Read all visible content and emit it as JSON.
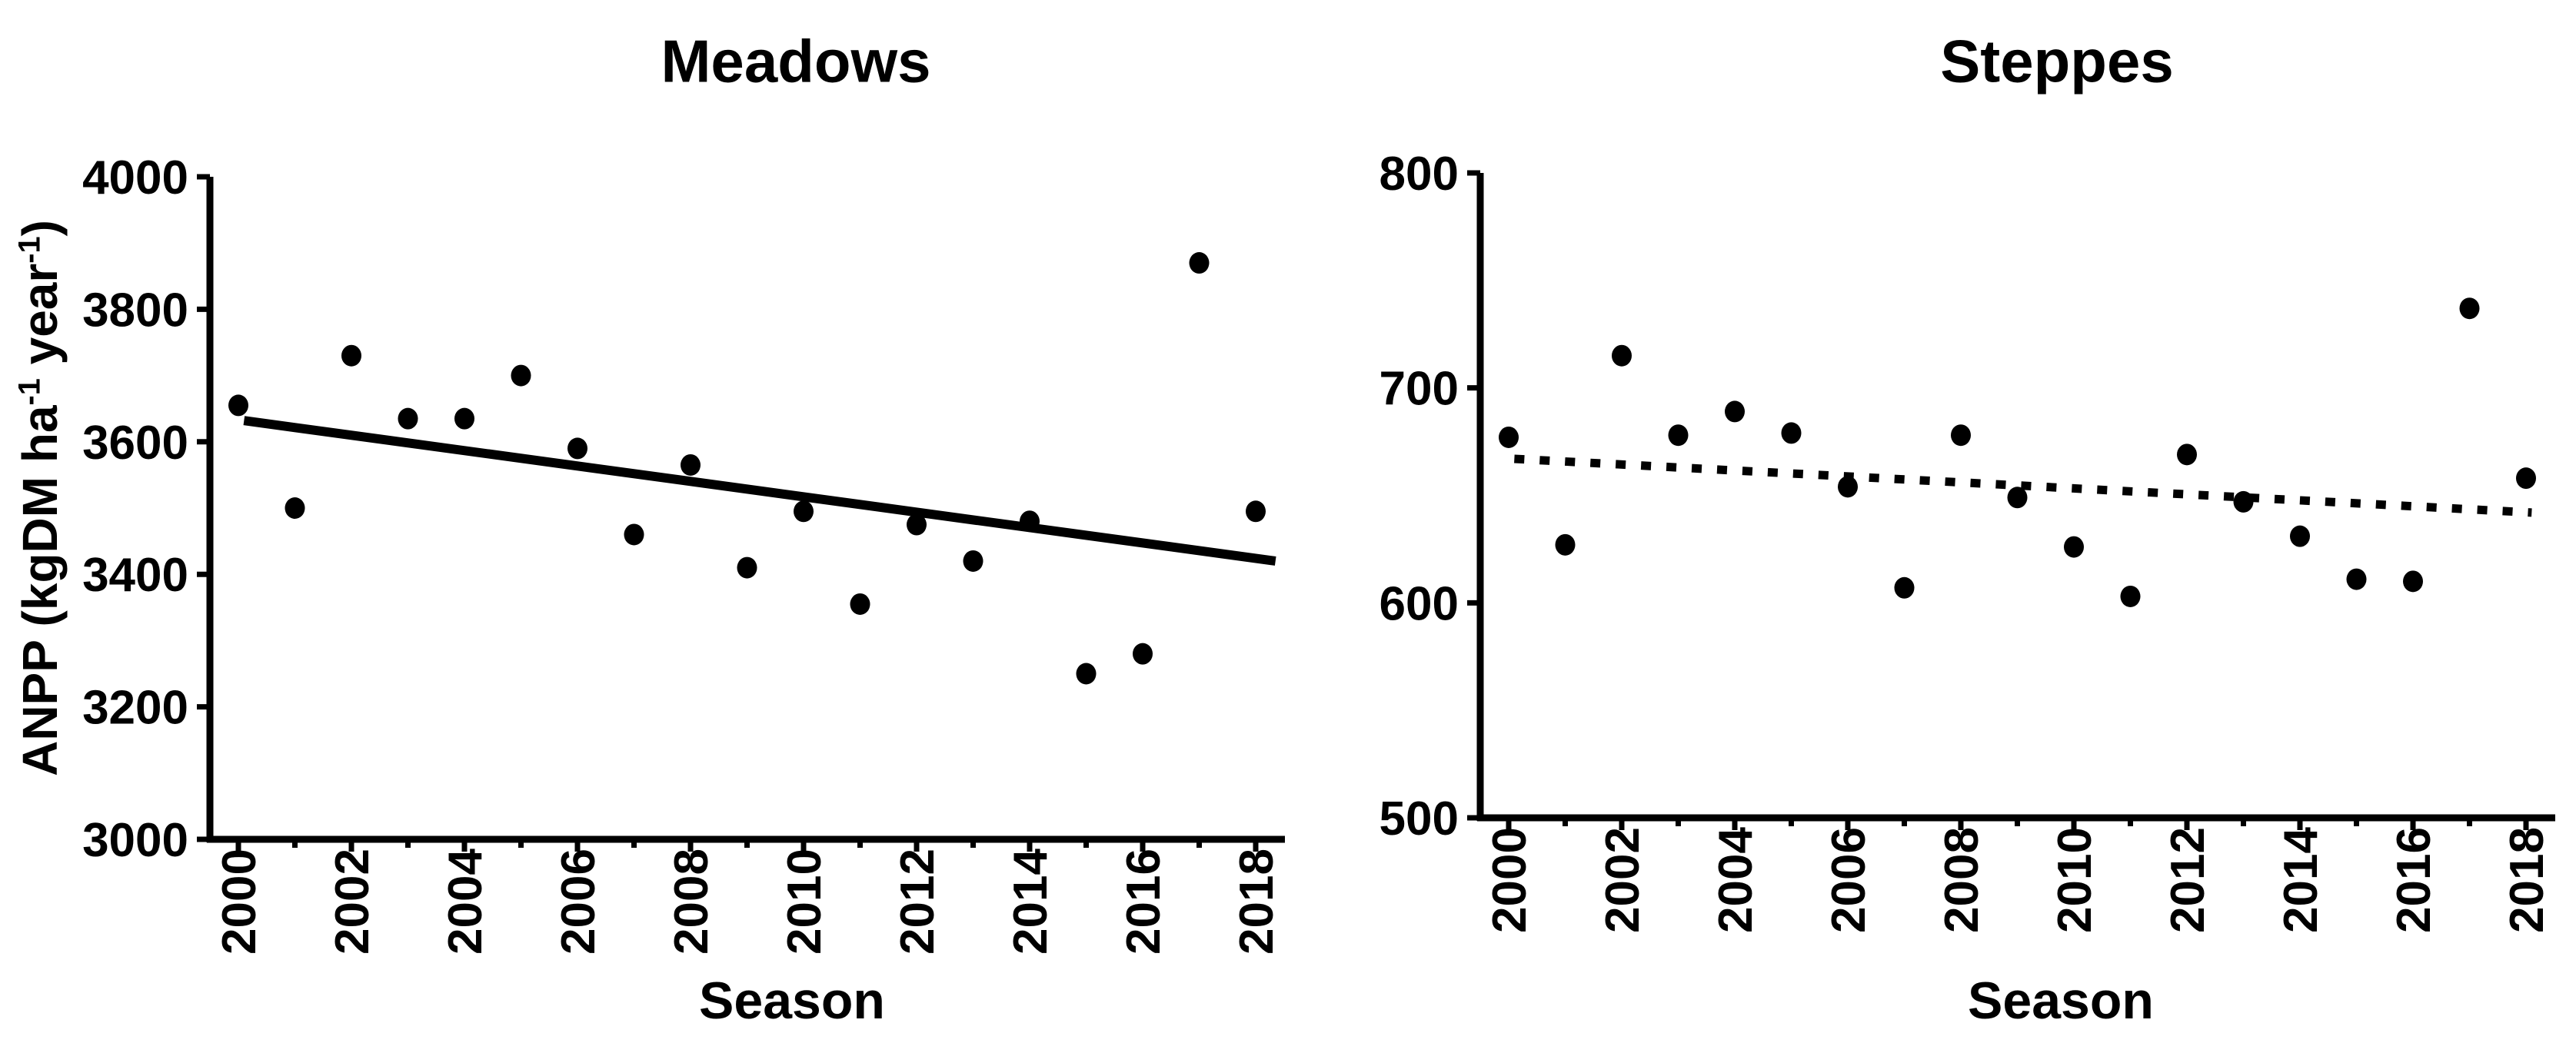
{
  "page": {
    "background": "#ffffff",
    "ink_color": "#000000"
  },
  "chart_data": [
    {
      "type": "scatter",
      "title": "Meadows",
      "xlabel": "Season",
      "ylabel": "ANPP (kgDM ha-1 year-1)",
      "ylabel_parts": [
        {
          "t": "ANPP (kgDM ha"
        },
        {
          "t": "-1",
          "sup": true
        },
        {
          "t": " year"
        },
        {
          "t": "-1",
          "sup": true
        },
        {
          "t": ")"
        }
      ],
      "x": [
        2000,
        2001,
        2002,
        2003,
        2004,
        2005,
        2006,
        2007,
        2008,
        2009,
        2010,
        2011,
        2012,
        2013,
        2014,
        2015,
        2016,
        2017,
        2018
      ],
      "values": [
        3655,
        3500,
        3730,
        3635,
        3635,
        3700,
        3590,
        3460,
        3565,
        3410,
        3495,
        3355,
        3475,
        3420,
        3480,
        3250,
        3280,
        3870,
        3495
      ],
      "xlim": [
        1999.5,
        2018.5
      ],
      "ylim": [
        3000,
        4000
      ],
      "yticks": [
        3000,
        3200,
        3400,
        3600,
        3800,
        4000
      ],
      "xticks_major": [
        2000,
        2002,
        2004,
        2006,
        2008,
        2010,
        2012,
        2014,
        2016,
        2018
      ],
      "xticks_minor": [
        2001,
        2003,
        2005,
        2007,
        2009,
        2011,
        2013,
        2015,
        2017
      ],
      "grid": false,
      "legend": null,
      "trend": {
        "style": "solid",
        "x0": 2000.1,
        "v0": 3632,
        "x1": 2018.35,
        "v1": 3420
      }
    },
    {
      "type": "scatter",
      "title": "Steppes",
      "xlabel": "Season",
      "ylabel": "",
      "x": [
        2000,
        2001,
        2002,
        2003,
        2004,
        2005,
        2006,
        2007,
        2008,
        2009,
        2010,
        2011,
        2012,
        2013,
        2014,
        2015,
        2016,
        2017,
        2018
      ],
      "values": [
        677,
        627,
        715,
        678,
        689,
        679,
        654,
        607,
        678,
        649,
        626,
        603,
        669,
        647,
        631,
        611,
        610,
        737,
        658
      ],
      "xlim": [
        1999.5,
        2018.5
      ],
      "ylim": [
        500,
        800
      ],
      "yticks": [
        500,
        600,
        700,
        800
      ],
      "xticks_major": [
        2000,
        2002,
        2004,
        2006,
        2008,
        2010,
        2012,
        2014,
        2016,
        2018
      ],
      "xticks_minor": [
        2001,
        2003,
        2005,
        2007,
        2009,
        2011,
        2013,
        2015,
        2017
      ],
      "grid": false,
      "legend": null,
      "trend": {
        "style": "dashed",
        "x0": 2000.1,
        "v0": 667,
        "x1": 2018.1,
        "v1": 642
      }
    }
  ]
}
